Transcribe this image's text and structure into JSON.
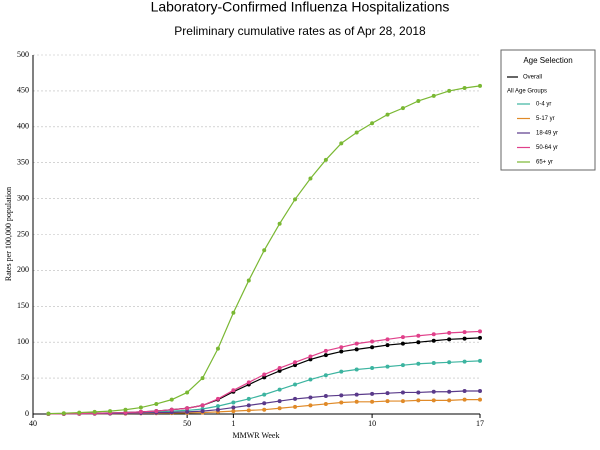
{
  "chart_data": {
    "type": "line",
    "title": "Laboratory-Confirmed Influenza Hospitalizations",
    "subtitle": "Preliminary cumulative rates as of Apr 28, 2018",
    "x_label": "MMWR Week",
    "y_label": "Rates per 100,000 population",
    "legend_title": "Age Selection",
    "legend_group": "All Age Groups",
    "categories": [
      "40",
      null,
      null,
      null,
      null,
      null,
      null,
      null,
      null,
      null,
      "50",
      null,
      null,
      "1",
      null,
      null,
      null,
      null,
      null,
      null,
      null,
      null,
      "10",
      null,
      null,
      null,
      null,
      null,
      null,
      "17"
    ],
    "ylim": [
      0,
      500
    ],
    "yticks": [
      0,
      50,
      100,
      150,
      200,
      250,
      300,
      350,
      400,
      450,
      500
    ],
    "grid": true,
    "series": [
      {
        "name": "Overall",
        "color": "#000000",
        "values": [
          null,
          0.2,
          0.4,
          0.6,
          1,
          1.4,
          2,
          3,
          4,
          6,
          8,
          12,
          20,
          31,
          41,
          51,
          60,
          68,
          76,
          82,
          87,
          90,
          93,
          96,
          98,
          100,
          102,
          104,
          105,
          106
        ]
      },
      {
        "name": "0-4 yr",
        "color": "#3cb4a0",
        "values": [
          null,
          0.2,
          0.4,
          0.6,
          1,
          1.5,
          2,
          2.5,
          3,
          4,
          5,
          7,
          11,
          16,
          21,
          27,
          34,
          41,
          48,
          54,
          59,
          62,
          64,
          66,
          68,
          70,
          71,
          72,
          73,
          74
        ]
      },
      {
        "name": "5-17 yr",
        "color": "#e08a28",
        "values": [
          null,
          0.1,
          0.2,
          0.3,
          0.4,
          0.5,
          0.6,
          0.8,
          1,
          1.3,
          1.6,
          2,
          3,
          4,
          5,
          6,
          8,
          10,
          12,
          14,
          16,
          17,
          17,
          18,
          18,
          19,
          19,
          19,
          20,
          20
        ]
      },
      {
        "name": "18-49 yr",
        "color": "#5a3a8a",
        "values": [
          null,
          0.1,
          0.2,
          0.3,
          0.5,
          0.7,
          1,
          1.3,
          1.7,
          2.3,
          3,
          4,
          6,
          9,
          12,
          15,
          18,
          21,
          23,
          25,
          26,
          27,
          28,
          29,
          30,
          30,
          31,
          31,
          32,
          32
        ]
      },
      {
        "name": "50-64 yr",
        "color": "#e0408a",
        "values": [
          null,
          0.2,
          0.4,
          0.6,
          1,
          1.5,
          2,
          3,
          4,
          6,
          8,
          12,
          21,
          33,
          44,
          55,
          64,
          72,
          80,
          88,
          93,
          98,
          101,
          104,
          107,
          109,
          111,
          113,
          114,
          115
        ]
      },
      {
        "name": "65+ yr",
        "color": "#7ab833",
        "values": [
          null,
          0.5,
          1,
          2,
          3,
          4,
          6,
          9,
          14,
          20,
          30,
          50,
          91,
          141,
          186,
          228,
          265,
          299,
          328,
          354,
          377,
          392,
          405,
          417,
          426,
          436,
          443,
          450,
          454,
          457
        ]
      }
    ]
  }
}
